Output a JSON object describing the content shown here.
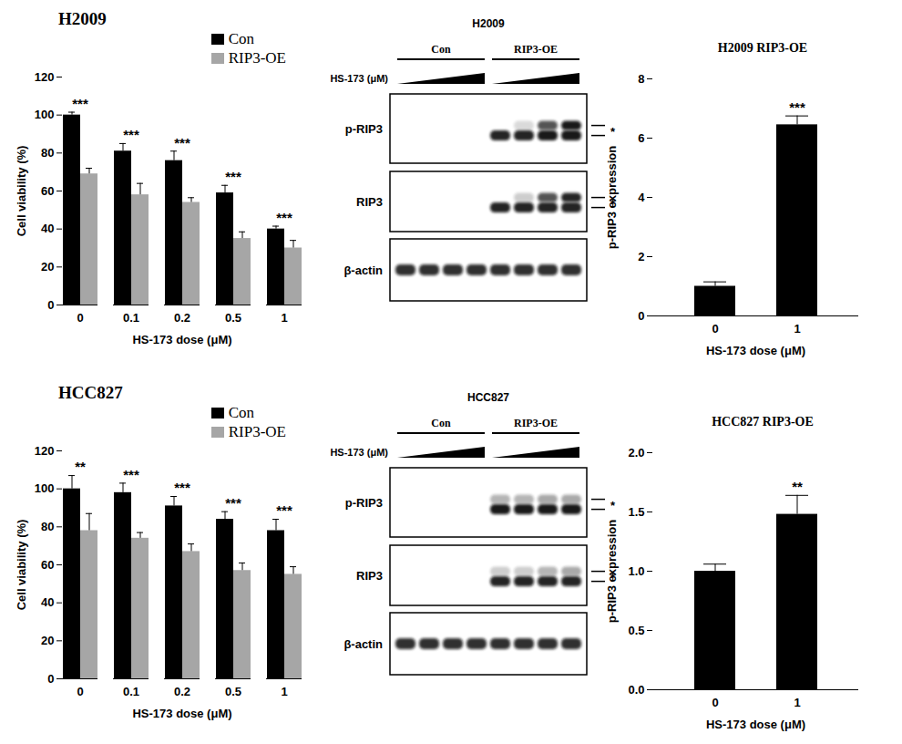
{
  "chart_data": [
    {
      "type": "bar",
      "title": "H2009",
      "x_label": "HS-173 dose (μM)",
      "y_label": "Cell viability (%)",
      "categories": [
        "0",
        "0.1",
        "0.2",
        "0.5",
        "1"
      ],
      "series": [
        {
          "name": "Con",
          "color": "#000000",
          "values": [
            100,
            81,
            76,
            59,
            40
          ],
          "errors": [
            1.5,
            4,
            5,
            4,
            1.5
          ]
        },
        {
          "name": "RIP3-OE",
          "color": "#a6a6a6",
          "values": [
            69,
            58,
            54,
            35,
            30
          ],
          "errors": [
            3,
            6,
            2.5,
            3.5,
            4
          ]
        }
      ],
      "significance": [
        "***",
        "***",
        "***",
        "***",
        "***"
      ],
      "ylim": [
        0,
        120
      ],
      "yticks": [
        0,
        20,
        40,
        60,
        80,
        100,
        120
      ],
      "legend": "top-right"
    },
    {
      "type": "bar",
      "title": "HCC827",
      "x_label": "HS-173 dose (μM)",
      "y_label": "Cell viability (%)",
      "categories": [
        "0",
        "0.1",
        "0.2",
        "0.5",
        "1"
      ],
      "series": [
        {
          "name": "Con",
          "color": "#000000",
          "values": [
            100,
            98,
            91,
            84,
            78
          ],
          "errors": [
            7,
            5,
            5,
            4,
            6
          ]
        },
        {
          "name": "RIP3-OE",
          "color": "#a6a6a6",
          "values": [
            78,
            74,
            67,
            57,
            55
          ],
          "errors": [
            9,
            3,
            4,
            4,
            4
          ]
        }
      ],
      "significance": [
        "**",
        "***",
        "***",
        "***",
        "***"
      ],
      "ylim": [
        0,
        120
      ],
      "yticks": [
        0,
        20,
        40,
        60,
        80,
        100,
        120
      ],
      "legend": "top-right"
    },
    {
      "type": "bar",
      "title": "H2009 RIP3-OE",
      "x_label": "HS-173 dose (μM)",
      "y_label": "p-RIP3 expression",
      "categories": [
        "0",
        "1"
      ],
      "values": [
        1,
        6.45
      ],
      "errors": [
        0.15,
        0.3
      ],
      "color": "#000000",
      "significance": [
        null,
        "***"
      ],
      "ylim": [
        0,
        8
      ],
      "yticks": [
        0,
        2,
        4,
        6,
        8
      ]
    },
    {
      "type": "bar",
      "title": "HCC827 RIP3-OE",
      "x_label": "HS-173 dose (μM)",
      "y_label": "p-RIP3 expression",
      "categories": [
        "0",
        "1"
      ],
      "values": [
        1,
        1.48
      ],
      "errors": [
        0.06,
        0.16
      ],
      "color": "#000000",
      "significance": [
        null,
        "**"
      ],
      "ylim": [
        0,
        2
      ],
      "yticks": [
        0,
        0.5,
        1,
        1.5,
        2
      ]
    }
  ],
  "blots": [
    {
      "title": "H2009",
      "groups": [
        "Con",
        "RIP3-OE"
      ],
      "treatment": "HS-173 (μM)",
      "mark_text": "*",
      "rows": [
        {
          "label": "p-RIP3",
          "bands": [
            0,
            0,
            0,
            0,
            0.9,
            0.9,
            0.95,
            0.95
          ],
          "upper_bands": [
            0,
            0,
            0,
            0,
            0,
            0.15,
            0.7,
            0.95
          ]
        },
        {
          "label": "RIP3",
          "bands": [
            0,
            0,
            0,
            0,
            0.9,
            0.9,
            0.9,
            0.9
          ],
          "upper_bands": [
            0,
            0,
            0,
            0,
            0,
            0.2,
            0.7,
            0.9
          ]
        },
        {
          "label": "β-actin",
          "bands": [
            0.85,
            0.85,
            0.85,
            0.85,
            0.85,
            0.85,
            0.85,
            0.85
          ]
        }
      ]
    },
    {
      "title": "HCC827",
      "groups": [
        "Con",
        "RIP3-OE"
      ],
      "treatment": "HS-173 (μM)",
      "mark_text": "*",
      "rows": [
        {
          "label": "p-RIP3",
          "bands": [
            0,
            0,
            0,
            0,
            0.95,
            0.95,
            0.95,
            0.95
          ],
          "upper_bands": [
            0,
            0,
            0,
            0,
            0.3,
            0.3,
            0.35,
            0.35
          ]
        },
        {
          "label": "RIP3",
          "bands": [
            0,
            0,
            0,
            0,
            0.9,
            0.9,
            0.9,
            0.9
          ],
          "upper_bands": [
            0,
            0,
            0,
            0,
            0.2,
            0.2,
            0.3,
            0.35
          ]
        },
        {
          "label": "β-actin",
          "bands": [
            0.85,
            0.85,
            0.85,
            0.85,
            0.85,
            0.85,
            0.85,
            0.85
          ]
        }
      ]
    }
  ]
}
